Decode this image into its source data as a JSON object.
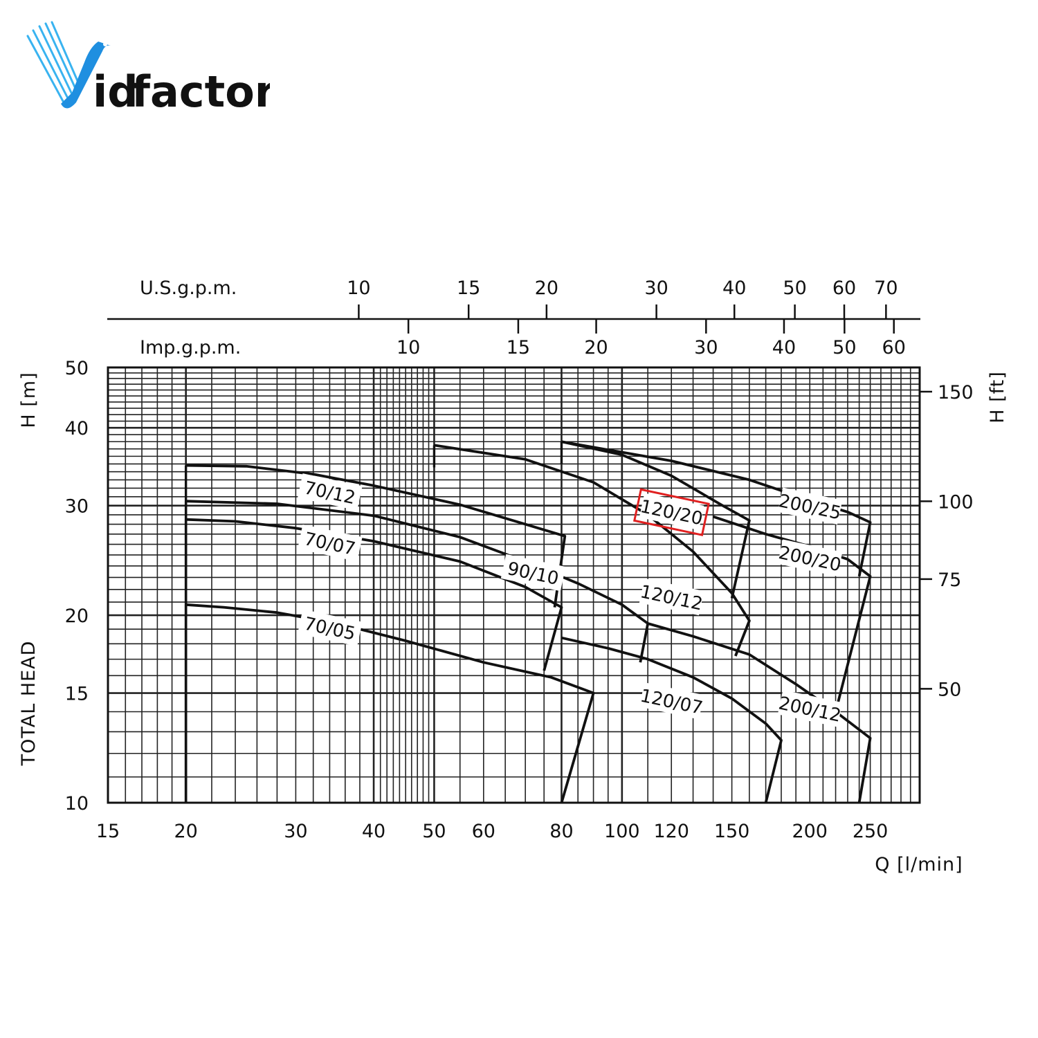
{
  "logo": {
    "text_v": "V",
    "text_id": "id",
    "text_factor": "factor",
    "colors": {
      "blue": "#1f8fe0",
      "light_blue": "#39b3f0",
      "gold": "#f2b51c"
    }
  },
  "chart_data": {
    "type": "line",
    "xscale": "log",
    "yscale": "log",
    "xlim": [
      15,
      300
    ],
    "ylim": [
      10,
      50
    ],
    "xlabel": "Q [l/min]",
    "ylabel_left_top": "H [m]",
    "ylabel_left_bottom": "TOTAL HEAD",
    "ylabel_right": "H [ft]",
    "x_ticks": [
      15,
      20,
      30,
      40,
      50,
      60,
      80,
      100,
      120,
      150,
      200,
      250
    ],
    "y_ticks": [
      10,
      15,
      20,
      30,
      40,
      50
    ],
    "ft_ticks": [
      50,
      75,
      100,
      150
    ],
    "usgpm_label": "U.S.g.p.m.",
    "usgpm_ticks": [
      10,
      15,
      20,
      30,
      40,
      50,
      60,
      70
    ],
    "impgpm_label": "Imp.g.p.m.",
    "impgpm_ticks": [
      10,
      15,
      20,
      30,
      40,
      50,
      60
    ],
    "highlight_color": "#e02020",
    "series": [
      {
        "name": "70/05",
        "x": [
          20,
          23,
          28,
          35,
          45,
          60,
          77,
          90
        ],
        "y": [
          20.8,
          20.6,
          20.2,
          19.4,
          18.2,
          16.8,
          15.9,
          15.0
        ],
        "label_x": 34,
        "label_y": 19.0,
        "end": [
          80,
          10
        ]
      },
      {
        "name": "70/07",
        "x": [
          20,
          24,
          30,
          40,
          55,
          70,
          80
        ],
        "y": [
          28.5,
          28.3,
          27.6,
          26.3,
          24.4,
          22.2,
          20.6
        ],
        "label_x": 34,
        "label_y": 26.0,
        "end": [
          75,
          16.3
        ]
      },
      {
        "name": "70/12",
        "x": [
          20,
          25,
          32,
          40,
          55,
          70,
          81
        ],
        "y": [
          34.8,
          34.7,
          33.7,
          32.3,
          30.1,
          28.0,
          26.8
        ],
        "label_x": 34,
        "label_y": 31.4,
        "end": [
          78,
          20.6
        ]
      },
      {
        "name": "90/10",
        "x": [
          20,
          28,
          40,
          55,
          70,
          85,
          100,
          110
        ],
        "y": [
          30.5,
          30.2,
          28.9,
          26.7,
          24.4,
          22.5,
          20.8,
          19.4
        ],
        "label_x": 72,
        "label_y": 23.3,
        "end": [
          107,
          16.8
        ]
      },
      {
        "name": "120/07",
        "x": [
          80,
          95,
          110,
          130,
          150,
          170,
          180
        ],
        "y": [
          18.4,
          17.7,
          17.0,
          15.9,
          14.7,
          13.4,
          12.6
        ],
        "label_x": 120,
        "label_y": 14.5,
        "end": [
          170,
          10
        ]
      },
      {
        "name": "120/12",
        "x": [
          50,
          70,
          90,
          110,
          130,
          150,
          160
        ],
        "y": [
          37.5,
          35.6,
          32.7,
          29.0,
          25.3,
          21.7,
          19.6
        ],
        "label_x": 120,
        "label_y": 21.3,
        "end": [
          152,
          17.2
        ]
      },
      {
        "name": "120/20",
        "x": [
          80,
          100,
          120,
          145,
          160
        ],
        "y": [
          38.0,
          36.2,
          33.5,
          30.0,
          28.4
        ],
        "label_x": 120,
        "label_y": 29.2,
        "end": [
          150,
          21.3
        ],
        "highlight": true
      },
      {
        "name": "200/12",
        "x": [
          110,
          130,
          160,
          190,
          220,
          250
        ],
        "y": [
          19.4,
          18.5,
          17.3,
          15.5,
          14.0,
          12.7
        ],
        "label_x": 200,
        "label_y": 14.1,
        "end": [
          240,
          10
        ]
      },
      {
        "name": "200/20",
        "x": [
          140,
          170,
          200,
          230,
          250
        ],
        "y": [
          28.8,
          27.0,
          25.8,
          24.6,
          23.1
        ],
        "label_x": 200,
        "label_y": 24.6,
        "end": [
          220,
          14.0
        ]
      },
      {
        "name": "200/25",
        "x": [
          80,
          120,
          160,
          200,
          230,
          250
        ],
        "y": [
          38.0,
          35.4,
          33.0,
          30.6,
          29.3,
          28.2
        ],
        "label_x": 200,
        "label_y": 29.8,
        "end": [
          240,
          23.1
        ]
      }
    ]
  }
}
